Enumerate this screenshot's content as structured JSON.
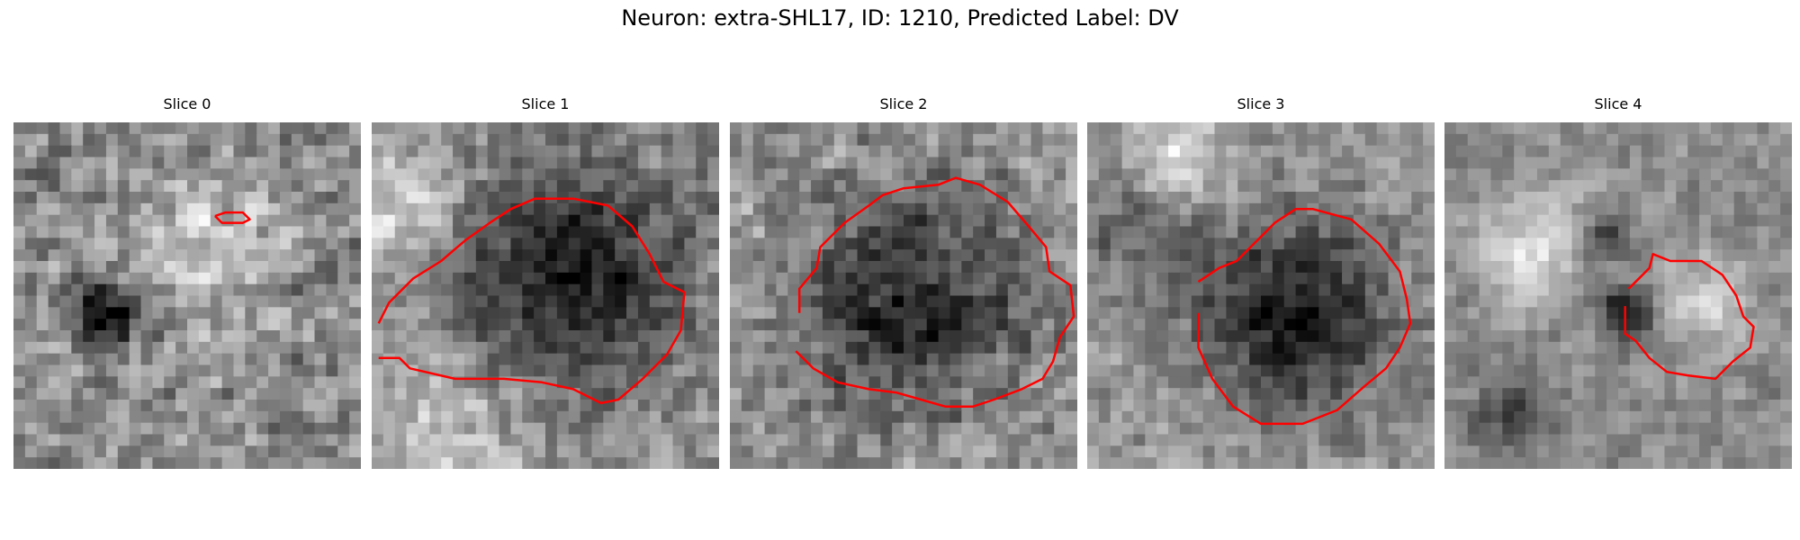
{
  "figure": {
    "title": "Neuron: extra-SHL17, ID: 1210, Predicted Label: DV"
  },
  "colors": {
    "contour": "#ff0000",
    "background": "#ffffff"
  },
  "slices": [
    {
      "title": "Slice 0",
      "seed": 11,
      "blobs": [
        [
          0.25,
          0.55,
          0.1,
          -0.55
        ],
        [
          0.55,
          0.35,
          0.18,
          0.25
        ]
      ],
      "base": 0.55,
      "noise": 0.28,
      "contour": [
        [
          0.58,
          0.27
        ],
        [
          0.61,
          0.26
        ],
        [
          0.66,
          0.26
        ],
        [
          0.68,
          0.28
        ],
        [
          0.66,
          0.29
        ],
        [
          0.6,
          0.29
        ],
        [
          0.58,
          0.27
        ]
      ]
    },
    {
      "title": "Slice 1",
      "seed": 23,
      "blobs": [
        [
          0.55,
          0.45,
          0.32,
          -0.45
        ],
        [
          0.05,
          0.25,
          0.2,
          0.3
        ],
        [
          0.2,
          0.9,
          0.25,
          0.25
        ]
      ],
      "base": 0.55,
      "noise": 0.22,
      "contour": [
        [
          0.02,
          0.58
        ],
        [
          0.05,
          0.52
        ],
        [
          0.12,
          0.45
        ],
        [
          0.2,
          0.4
        ],
        [
          0.27,
          0.34
        ],
        [
          0.34,
          0.29
        ],
        [
          0.4,
          0.25
        ],
        [
          0.47,
          0.22
        ],
        [
          0.58,
          0.22
        ],
        [
          0.68,
          0.24
        ],
        [
          0.75,
          0.3
        ],
        [
          0.8,
          0.38
        ],
        [
          0.84,
          0.46
        ],
        [
          0.9,
          0.49
        ],
        [
          0.89,
          0.6
        ],
        [
          0.85,
          0.67
        ],
        [
          0.78,
          0.74
        ],
        [
          0.71,
          0.8
        ],
        [
          0.66,
          0.81
        ],
        [
          0.58,
          0.77
        ],
        [
          0.49,
          0.75
        ],
        [
          0.38,
          0.74
        ],
        [
          0.24,
          0.74
        ],
        [
          0.11,
          0.71
        ],
        [
          0.08,
          0.68
        ],
        [
          0.02,
          0.68
        ]
      ]
    },
    {
      "title": "Slice 2",
      "seed": 37,
      "blobs": [
        [
          0.52,
          0.52,
          0.33,
          -0.45
        ]
      ],
      "base": 0.6,
      "noise": 0.24,
      "contour": [
        [
          0.2,
          0.55
        ],
        [
          0.2,
          0.48
        ],
        [
          0.25,
          0.42
        ],
        [
          0.26,
          0.36
        ],
        [
          0.33,
          0.29
        ],
        [
          0.4,
          0.24
        ],
        [
          0.44,
          0.21
        ],
        [
          0.5,
          0.19
        ],
        [
          0.6,
          0.18
        ],
        [
          0.65,
          0.16
        ],
        [
          0.72,
          0.18
        ],
        [
          0.8,
          0.23
        ],
        [
          0.86,
          0.3
        ],
        [
          0.91,
          0.36
        ],
        [
          0.92,
          0.43
        ],
        [
          0.98,
          0.47
        ],
        [
          0.99,
          0.56
        ],
        [
          0.95,
          0.62
        ],
        [
          0.93,
          0.69
        ],
        [
          0.9,
          0.74
        ],
        [
          0.84,
          0.77
        ],
        [
          0.76,
          0.8
        ],
        [
          0.7,
          0.82
        ],
        [
          0.62,
          0.82
        ],
        [
          0.55,
          0.8
        ],
        [
          0.48,
          0.78
        ],
        [
          0.4,
          0.77
        ],
        [
          0.31,
          0.75
        ],
        [
          0.24,
          0.71
        ],
        [
          0.19,
          0.66
        ]
      ]
    },
    {
      "title": "Slice 3",
      "seed": 53,
      "blobs": [
        [
          0.6,
          0.55,
          0.28,
          -0.5
        ],
        [
          0.15,
          0.3,
          0.2,
          -0.2
        ],
        [
          0.25,
          0.1,
          0.15,
          0.3
        ]
      ],
      "base": 0.6,
      "noise": 0.2,
      "contour": [
        [
          0.32,
          0.46
        ],
        [
          0.38,
          0.42
        ],
        [
          0.43,
          0.4
        ],
        [
          0.48,
          0.35
        ],
        [
          0.54,
          0.29
        ],
        [
          0.6,
          0.25
        ],
        [
          0.65,
          0.25
        ],
        [
          0.76,
          0.28
        ],
        [
          0.84,
          0.35
        ],
        [
          0.9,
          0.43
        ],
        [
          0.92,
          0.51
        ],
        [
          0.93,
          0.58
        ],
        [
          0.9,
          0.65
        ],
        [
          0.86,
          0.71
        ],
        [
          0.8,
          0.76
        ],
        [
          0.72,
          0.83
        ],
        [
          0.62,
          0.87
        ],
        [
          0.5,
          0.87
        ],
        [
          0.42,
          0.82
        ],
        [
          0.36,
          0.74
        ],
        [
          0.32,
          0.65
        ],
        [
          0.32,
          0.55
        ]
      ]
    },
    {
      "title": "Slice 4",
      "seed": 71,
      "blobs": [
        [
          0.27,
          0.35,
          0.15,
          0.35
        ],
        [
          0.77,
          0.52,
          0.13,
          0.25
        ],
        [
          0.18,
          0.83,
          0.12,
          -0.25
        ],
        [
          0.52,
          0.55,
          0.07,
          -0.55
        ],
        [
          0.45,
          0.33,
          0.08,
          -0.3
        ]
      ],
      "base": 0.55,
      "noise": 0.16,
      "contour": [
        [
          0.53,
          0.48
        ],
        [
          0.56,
          0.45
        ],
        [
          0.59,
          0.42
        ],
        [
          0.6,
          0.38
        ],
        [
          0.65,
          0.4
        ],
        [
          0.74,
          0.4
        ],
        [
          0.8,
          0.44
        ],
        [
          0.84,
          0.5
        ],
        [
          0.86,
          0.56
        ],
        [
          0.89,
          0.59
        ],
        [
          0.88,
          0.65
        ],
        [
          0.83,
          0.69
        ],
        [
          0.78,
          0.74
        ],
        [
          0.7,
          0.73
        ],
        [
          0.64,
          0.72
        ],
        [
          0.59,
          0.68
        ],
        [
          0.55,
          0.63
        ],
        [
          0.52,
          0.61
        ],
        [
          0.52,
          0.53
        ]
      ]
    }
  ]
}
